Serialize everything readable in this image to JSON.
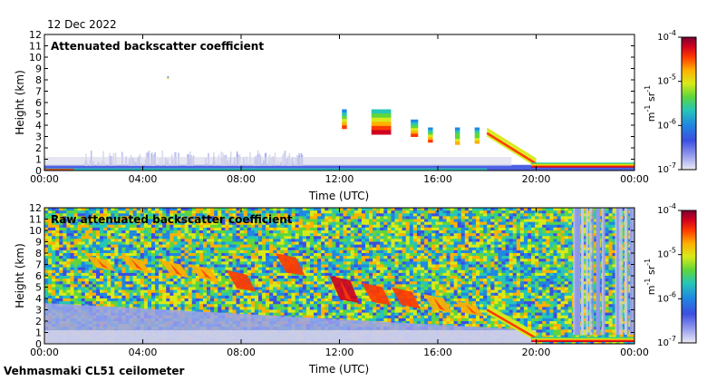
{
  "date_label": "12 Dec 2022",
  "footer": "Vehmasmaki CL51 ceilometer",
  "colors": {
    "background": "#ffffff",
    "low_signal": "#c8c8dc",
    "colormap": [
      "#ebebf5",
      "#9aa0ee",
      "#3b4fe0",
      "#1f88e0",
      "#26c6b6",
      "#5ed63c",
      "#d8ea1a",
      "#ffb000",
      "#ff3a00",
      "#d00020",
      "#7a0030"
    ]
  },
  "chart_data": [
    {
      "type": "heatmap",
      "title": "Attenuated backscatter coefficient",
      "xlabel": "Time (UTC)",
      "ylabel": "Height (km)",
      "x_ticks": [
        "00:00",
        "04:00",
        "08:00",
        "12:00",
        "16:00",
        "20:00",
        "00:00"
      ],
      "x_range_hours": [
        0,
        24
      ],
      "y_ticks": [
        "0",
        "1",
        "2",
        "3",
        "4",
        "5",
        "6",
        "7",
        "8",
        "9",
        "10",
        "11",
        "12"
      ],
      "ylim": [
        0,
        12
      ],
      "colorbar": {
        "label_base": "m",
        "label_exp1": "-1",
        "label_unit2": "sr",
        "label_exp2": "-1",
        "scale": "log",
        "ticks": [
          {
            "base": "10",
            "exp": "-7",
            "log": -7
          },
          {
            "base": "10",
            "exp": "-6",
            "log": -6
          },
          {
            "base": "10",
            "exp": "-5",
            "log": -5
          },
          {
            "base": "10",
            "exp": "-4",
            "log": -4
          }
        ]
      },
      "features": [
        {
          "name": "boundary-layer haze",
          "t_start": 0,
          "t_end": 24,
          "top_km": 0.5,
          "log_value": -6.6
        },
        {
          "name": "low aerosol layer",
          "t_start": 1.6,
          "t_end": 10.5,
          "top_km": 1.8,
          "log_value": -6.8
        },
        {
          "name": "cloud 12h",
          "t_start": 12.1,
          "t_end": 12.3,
          "base_km": 3.7,
          "top_km": 5.4,
          "log_value": -5.2
        },
        {
          "name": "cloud 13-14h",
          "t_start": 13.3,
          "t_end": 14.1,
          "base_km": 3.2,
          "top_km": 5.4,
          "log_value": -5.0
        },
        {
          "name": "cloud 15h",
          "t_start": 14.9,
          "t_end": 15.2,
          "base_km": 3.0,
          "top_km": 4.5,
          "log_value": -5.2
        },
        {
          "name": "cloud 15.5h",
          "t_start": 15.6,
          "t_end": 15.8,
          "base_km": 2.5,
          "top_km": 3.8,
          "log_value": -5.3
        },
        {
          "name": "cloud 16.8h",
          "t_start": 16.7,
          "t_end": 16.9,
          "base_km": 2.3,
          "top_km": 3.8,
          "log_value": -5.4
        },
        {
          "name": "cloud 17.6h",
          "t_start": 17.5,
          "t_end": 17.7,
          "base_km": 2.4,
          "top_km": 3.8,
          "log_value": -5.4
        },
        {
          "name": "descending cloud base",
          "t_start": 18.0,
          "t_end": 20.0,
          "base_start_km": 3.3,
          "base_end_km": 0.6,
          "log_value": -4.6
        },
        {
          "name": "low cloud 20-24h",
          "t_start": 19.8,
          "t_end": 24,
          "base_km": 0.3,
          "top_km": 0.7,
          "log_value": -5.0
        },
        {
          "name": "isolated echo",
          "t_start": 5.0,
          "t_end": 5.05,
          "base_km": 8.1,
          "top_km": 8.3,
          "log_value": -5.5
        }
      ]
    },
    {
      "type": "heatmap",
      "title": "Raw attenuated backscatter coefficient",
      "xlabel": "Time (UTC)",
      "ylabel": "Height (km)",
      "x_ticks": [
        "00:00",
        "04:00",
        "08:00",
        "12:00",
        "16:00",
        "20:00",
        "00:00"
      ],
      "x_range_hours": [
        0,
        24
      ],
      "y_ticks": [
        "0",
        "1",
        "2",
        "3",
        "4",
        "5",
        "6",
        "7",
        "8",
        "9",
        "10",
        "11",
        "12"
      ],
      "ylim": [
        0,
        12
      ],
      "colorbar": {
        "label_base": "m",
        "label_exp1": "-1",
        "label_unit2": "sr",
        "label_exp2": "-1",
        "scale": "log",
        "ticks": [
          {
            "base": "10",
            "exp": "-7",
            "log": -7
          },
          {
            "base": "10",
            "exp": "-6",
            "log": -6
          },
          {
            "base": "10",
            "exp": "-5",
            "log": -5
          },
          {
            "base": "10",
            "exp": "-4",
            "log": -4
          }
        ]
      },
      "features": [
        {
          "name": "noisy background",
          "t_start": 0,
          "t_end": 24,
          "top_km": 12,
          "log_value": -5.5
        },
        {
          "name": "noise-free lower region",
          "t_start": 0,
          "t_end": 20,
          "top_km": 3.5,
          "log_value": -6.6
        },
        {
          "name": "streak 1",
          "t_center": 2.3,
          "base_km": 6.4,
          "top_km": 7.8,
          "log_value": -4.9
        },
        {
          "name": "streak 2",
          "t_center": 3.7,
          "base_km": 6.3,
          "top_km": 7.8,
          "log_value": -4.9
        },
        {
          "name": "streak 3",
          "t_center": 5.3,
          "base_km": 5.8,
          "top_km": 7.4,
          "log_value": -4.9
        },
        {
          "name": "streak 4",
          "t_center": 6.5,
          "base_km": 5.5,
          "top_km": 7.0,
          "log_value": -4.9
        },
        {
          "name": "streak 5",
          "t_center": 8.0,
          "base_km": 4.6,
          "top_km": 6.5,
          "log_value": -4.5
        },
        {
          "name": "streak 6",
          "t_center": 10.0,
          "base_km": 6.0,
          "top_km": 8.0,
          "log_value": -4.6
        },
        {
          "name": "streak 7",
          "t_center": 12.2,
          "base_km": 3.6,
          "top_km": 6.0,
          "log_value": -4.4
        },
        {
          "name": "streak 8",
          "t_center": 13.5,
          "base_km": 3.4,
          "top_km": 5.4,
          "log_value": -4.5
        },
        {
          "name": "streak 9",
          "t_center": 14.7,
          "base_km": 3.1,
          "top_km": 5.0,
          "log_value": -4.6
        },
        {
          "name": "streak 10",
          "t_center": 16.0,
          "base_km": 2.7,
          "top_km": 4.4,
          "log_value": -4.8
        },
        {
          "name": "streak 11",
          "t_center": 17.3,
          "base_km": 2.4,
          "top_km": 3.8,
          "log_value": -5.0
        },
        {
          "name": "descending cloud base",
          "t_start": 18.0,
          "t_end": 20.0,
          "base_start_km": 3.0,
          "base_end_km": 0.5,
          "log_value": -4.6
        },
        {
          "name": "low cloud 20-24h",
          "t_start": 19.8,
          "t_end": 24,
          "base_km": 0.2,
          "top_km": 0.6,
          "log_value": -5.0
        },
        {
          "name": "vertical noise columns",
          "t_start": 21.5,
          "t_end": 24,
          "top_km": 12,
          "log_value": -6.5
        }
      ]
    }
  ]
}
